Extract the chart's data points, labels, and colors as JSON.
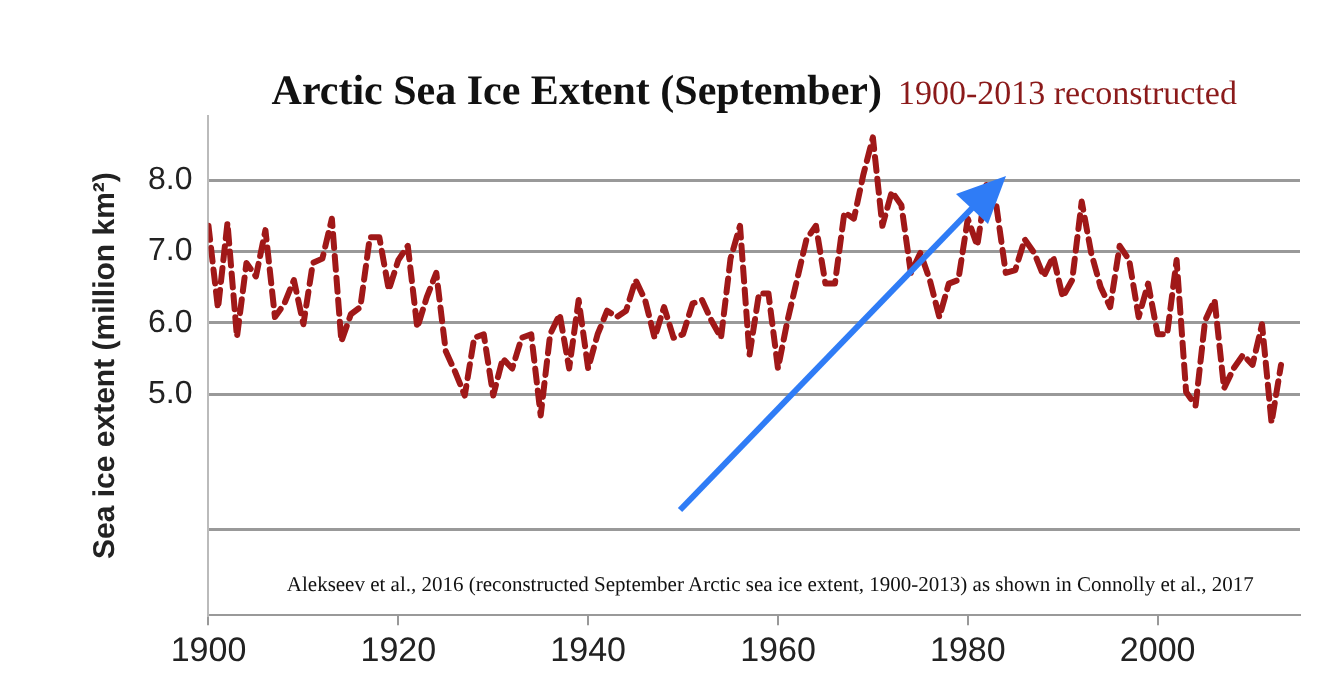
{
  "chart_data": {
    "type": "line",
    "title": "Arctic Sea Ice Extent (September)",
    "subtitle": "1900-2013 reconstructed",
    "ylabel": "Sea ice extent (million km²)",
    "annotations": [
      "Alekseev et al., 2016 (reconstructed September Arctic sea ice extent, 1900-2013) as shown in Connolly et al., 2017"
    ],
    "x": [
      1900,
      1901,
      1902,
      1903,
      1904,
      1905,
      1906,
      1907,
      1908,
      1909,
      1910,
      1911,
      1912,
      1913,
      1914,
      1915,
      1916,
      1917,
      1918,
      1919,
      1920,
      1921,
      1922,
      1923,
      1924,
      1925,
      1926,
      1927,
      1928,
      1929,
      1930,
      1931,
      1932,
      1933,
      1934,
      1935,
      1936,
      1937,
      1938,
      1939,
      1940,
      1941,
      1942,
      1943,
      1944,
      1945,
      1946,
      1947,
      1948,
      1949,
      1950,
      1951,
      1952,
      1953,
      1954,
      1955,
      1956,
      1957,
      1958,
      1959,
      1960,
      1961,
      1962,
      1963,
      1964,
      1965,
      1966,
      1967,
      1968,
      1969,
      1970,
      1971,
      1972,
      1973,
      1974,
      1975,
      1976,
      1977,
      1978,
      1979,
      1980,
      1981,
      1982,
      1983,
      1984,
      1985,
      1986,
      1987,
      1988,
      1989,
      1990,
      1991,
      1992,
      1993,
      1994,
      1995,
      1996,
      1997,
      1998,
      1999,
      2000,
      2001,
      2002,
      2003,
      2004,
      2005,
      2006,
      2007,
      2008,
      2009,
      2010,
      2011,
      2012,
      2013
    ],
    "series": [
      {
        "color": "#a01818",
        "values": [
          7.36,
          6.2,
          7.4,
          5.8,
          6.84,
          6.65,
          7.3,
          6.08,
          6.27,
          6.6,
          5.98,
          6.84,
          6.9,
          7.46,
          5.74,
          6.12,
          6.22,
          7.2,
          7.2,
          6.46,
          6.88,
          7.08,
          5.93,
          6.36,
          6.7,
          5.6,
          5.31,
          4.98,
          5.79,
          5.84,
          4.98,
          5.5,
          5.36,
          5.79,
          5.84,
          4.7,
          5.84,
          6.12,
          5.36,
          6.32,
          5.36,
          5.84,
          6.17,
          6.08,
          6.17,
          6.6,
          6.32,
          5.79,
          6.22,
          5.79,
          5.84,
          6.27,
          6.32,
          6.03,
          5.79,
          6.9,
          7.36,
          5.55,
          6.41,
          6.41,
          5.36,
          6.03,
          6.6,
          7.17,
          7.36,
          6.55,
          6.55,
          7.55,
          7.46,
          8.08,
          8.6,
          7.36,
          7.84,
          7.65,
          6.7,
          6.98,
          6.6,
          6.08,
          6.55,
          6.6,
          7.46,
          7.08,
          7.98,
          7.65,
          6.7,
          6.74,
          7.17,
          6.98,
          6.65,
          6.93,
          6.36,
          6.6,
          7.7,
          6.98,
          6.5,
          6.22,
          7.08,
          6.88,
          6.08,
          6.55,
          5.84,
          5.84,
          6.88,
          5.03,
          4.84,
          6.03,
          6.32,
          5.08,
          5.36,
          5.55,
          5.41,
          5.98,
          4.6,
          5.41
        ]
      }
    ],
    "xlim": [
      1900,
      2015
    ],
    "xticks": [
      1900,
      1920,
      1940,
      1960,
      1980,
      2000
    ],
    "ylim": [
      1.9,
      8.9
    ],
    "yticks": [
      {
        "value": 3.1,
        "label": null
      },
      {
        "value": 5,
        "label": "5.0"
      },
      {
        "value": 6,
        "label": "6.0"
      },
      {
        "value": 7,
        "label": "7.0"
      },
      {
        "value": 8,
        "label": "8.0"
      }
    ],
    "grid": "y",
    "legend": false,
    "marker": "none",
    "line_style": "dashed"
  }
}
